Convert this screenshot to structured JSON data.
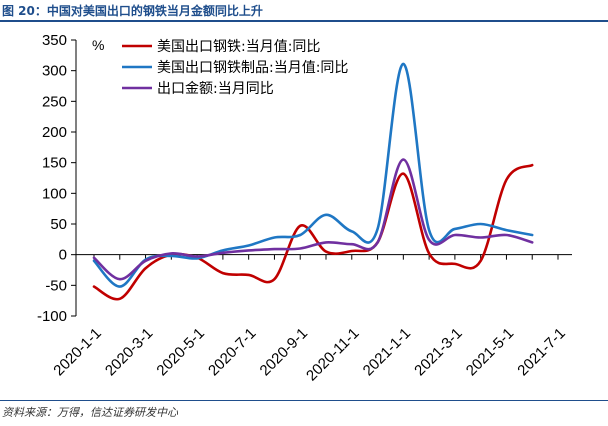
{
  "figure": {
    "title": "图 20：中国对美国出口的钢铁当月金额同比上升",
    "source": "资料来源：万得，信达证券研发中心"
  },
  "chart_data": {
    "type": "line",
    "unit": "%",
    "ylim": [
      -100,
      350
    ],
    "yticks": [
      -100,
      -50,
      0,
      50,
      100,
      150,
      200,
      250,
      300,
      350
    ],
    "xticks": [
      "2020-1-1",
      "2020-3-1",
      "2020-5-1",
      "2020-7-1",
      "2020-9-1",
      "2020-11-1",
      "2021-1-1",
      "2021-3-1",
      "2021-5-1",
      "2021-7-1"
    ],
    "legend_position": "top-left",
    "grid": false,
    "x": [
      "2020-01",
      "2020-02",
      "2020-03",
      "2020-04",
      "2020-05",
      "2020-06",
      "2020-07",
      "2020-08",
      "2020-09",
      "2020-10",
      "2020-11",
      "2020-12",
      "2021-01",
      "2021-02",
      "2021-03",
      "2021-04",
      "2021-05",
      "2021-06",
      "2021-07"
    ],
    "series": [
      {
        "name": "美国出口钢铁:当月值:同比",
        "color": "#c00000",
        "values": [
          -52,
          -72,
          -22,
          0,
          -5,
          -30,
          -33,
          -40,
          47,
          5,
          6,
          20,
          132,
          2,
          -15,
          -10,
          122,
          146,
          null
        ]
      },
      {
        "name": "美国出口钢铁制品:当月值:同比",
        "color": "#1f77c4",
        "values": [
          -10,
          -52,
          -8,
          -2,
          -6,
          7,
          15,
          28,
          32,
          65,
          38,
          42,
          311,
          40,
          42,
          50,
          40,
          32,
          null
        ]
      },
      {
        "name": "出口金额:当月同比",
        "color": "#7030a0",
        "values": [
          -5,
          -40,
          -10,
          2,
          -3,
          3,
          7,
          9,
          10,
          20,
          17,
          20,
          155,
          24,
          32,
          28,
          32,
          20,
          null
        ]
      }
    ]
  }
}
